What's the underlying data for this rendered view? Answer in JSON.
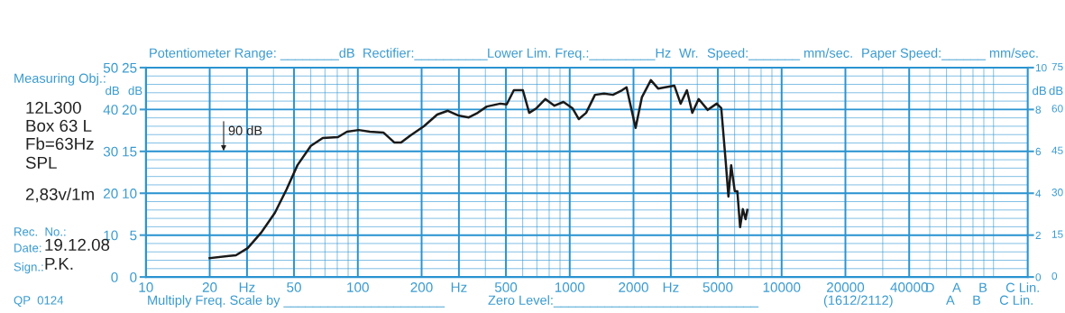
{
  "chart_data": {
    "type": "line",
    "log": "x",
    "grid": true,
    "line_style": "solid",
    "xlim": [
      10,
      145000
    ],
    "xticks": [
      10,
      20,
      {
        "value": 30,
        "label": "Hz"
      },
      50,
      100,
      200,
      {
        "value": 300,
        "label": "Hz"
      },
      500,
      1000,
      2000,
      {
        "value": 3000,
        "label": "Hz"
      },
      5000,
      10000,
      20000,
      40000
    ],
    "ylim": [
      0,
      50
    ],
    "yticks": [
      0,
      10,
      20,
      30,
      40,
      50
    ],
    "ylabel": "dB",
    "y2lim": [
      0,
      25
    ],
    "y2ticks": [
      0,
      5,
      10,
      15,
      20,
      25
    ],
    "y2label": "dB",
    "y3lim": [
      0,
      10
    ],
    "y3ticks": [
      0,
      2,
      4,
      6,
      8,
      10
    ],
    "y3label": "dB",
    "x": [
      20,
      26.6,
      30.2,
      35,
      40.6,
      46.1,
      51.9,
      60,
      68.3,
      80.6,
      88.9,
      101,
      114,
      132,
      149,
      160,
      177,
      205,
      237,
      266,
      297,
      334,
      368,
      406,
      470,
      504,
      545,
      601,
      644,
      697,
      767,
      847,
      934,
      1030,
      1104,
      1195,
      1316,
      1452,
      1600,
      1766,
      1854,
      2046,
      2190,
      2415,
      2612,
      2825,
      3117,
      3337,
      3573,
      3790,
      4060,
      4480,
      4940,
      5190,
      5450,
      5610,
      5780,
      6010,
      6180,
      6370,
      6560,
      6760,
      6890
    ],
    "series": [
      {
        "color": "#1a1a1a",
        "values": [
          4.5,
          5.2,
          6.9,
          10.6,
          15.3,
          20.9,
          26.7,
          31.3,
          33.2,
          33.4,
          34.7,
          35.1,
          34.7,
          34.5,
          32.1,
          32.1,
          33.8,
          36.0,
          38.8,
          39.7,
          38.6,
          38.1,
          39.2,
          40.7,
          41.4,
          41.2,
          44.6,
          44.6,
          39.2,
          40.3,
          42.5,
          40.9,
          41.8,
          40.3,
          37.7,
          39.2,
          43.5,
          43.8,
          43.5,
          44.6,
          45.3,
          35.6,
          42.9,
          47.0,
          45.0,
          45.3,
          45.7,
          41.4,
          44.6,
          39.2,
          42.5,
          39.9,
          41.4,
          40.3,
          27.4,
          19.2,
          26.7,
          20.5,
          20.5,
          11.9,
          16.2,
          13.8,
          16.0
        ]
      }
    ],
    "annotations": [
      "Potentiometer Range: ________dB",
      "Rectifier:__________",
      "Lower Lim. Freq.:_________Hz",
      "Wr.",
      "Speed:_______ mm/sec.",
      "Paper Speed:______ mm/sec.",
      "Measuring Obj.:",
      "12L300",
      "Box 63 L",
      "Fb=63Hz",
      "SPL",
      "2,83v/1m",
      "Rec.  No.:",
      "Date:",
      "19.12.08",
      "Sign.:",
      "P.K.",
      "QP  0124",
      "Multiply Freq. Scale by ______________________",
      "Zero Level:____________________________",
      "(1612/2112)",
      "D     A     B     C Lin.",
      "A     B     C Lin.",
      "90 dB",
      "0",
      "15",
      "30",
      "45",
      "60",
      "75",
      "dB"
    ]
  }
}
